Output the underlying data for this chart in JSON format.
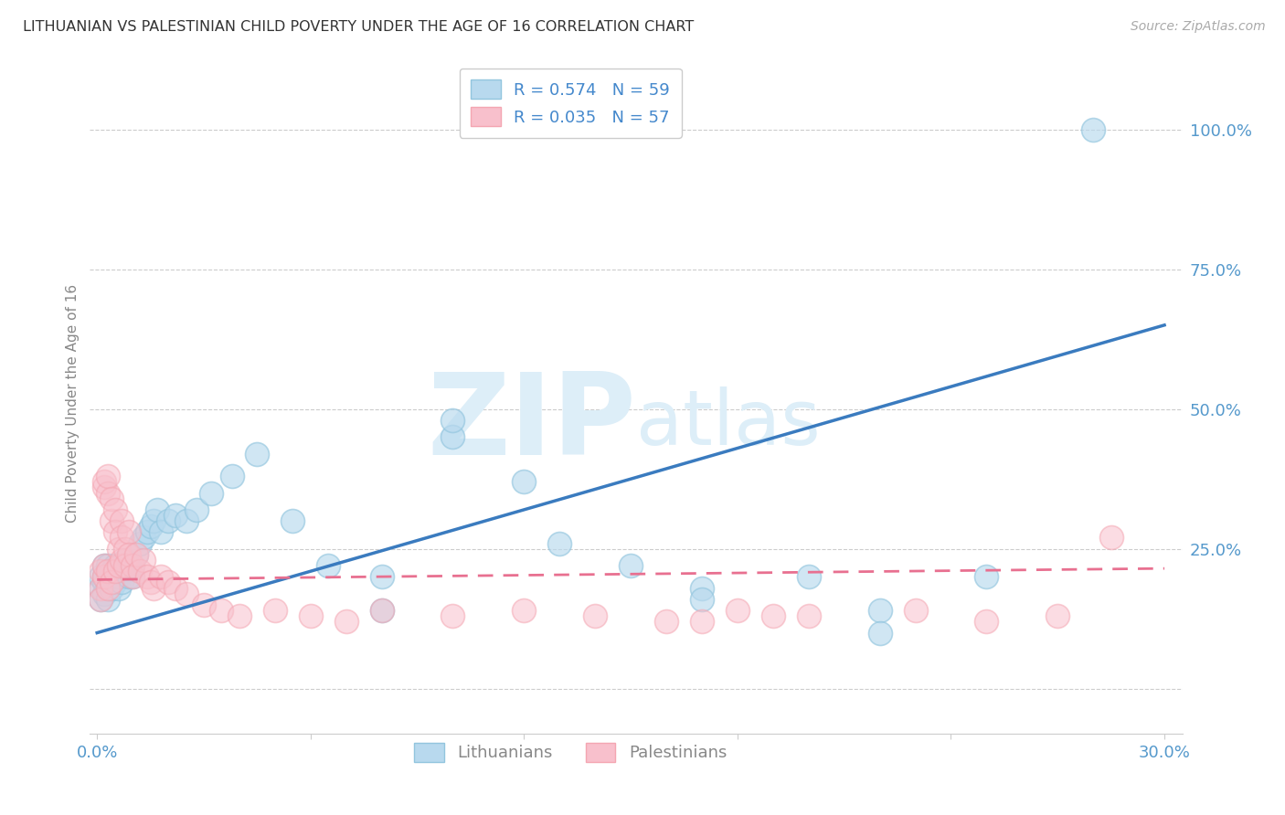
{
  "title": "LITHUANIAN VS PALESTINIAN CHILD POVERTY UNDER THE AGE OF 16 CORRELATION CHART",
  "source": "Source: ZipAtlas.com",
  "ylabel": "Child Poverty Under the Age of 16",
  "xlim": [
    -0.002,
    0.305
  ],
  "ylim": [
    -0.08,
    1.1
  ],
  "yticks": [
    0.0,
    0.25,
    0.5,
    0.75,
    1.0
  ],
  "ytick_labels": [
    "",
    "25.0%",
    "50.0%",
    "75.0%",
    "100.0%"
  ],
  "xticks": [
    0.0,
    0.06,
    0.12,
    0.18,
    0.24,
    0.3
  ],
  "xtick_labels": [
    "0.0%",
    "",
    "",
    "",
    "",
    "30.0%"
  ],
  "legend_r_labels": [
    "R = 0.574   N = 59",
    "R = 0.035   N = 57"
  ],
  "legend_labels": [
    "Lithuanians",
    "Palestinians"
  ],
  "blue_color": "#92c5de",
  "pink_color": "#f4a6b2",
  "blue_face": "#b8d9ee",
  "pink_face": "#f8c0cc",
  "blue_line_color": "#3a7bbf",
  "pink_line_color": "#e87090",
  "grid_color": "#cccccc",
  "watermark_color": "#ddeef8",
  "lit_line_x0": 0.0,
  "lit_line_x1": 0.3,
  "lit_line_y0": 0.1,
  "lit_line_y1": 0.65,
  "pal_line_x0": 0.0,
  "pal_line_x1": 0.3,
  "pal_line_y0": 0.195,
  "pal_line_y1": 0.215,
  "lit_x": [
    0.001,
    0.001,
    0.001,
    0.002,
    0.002,
    0.002,
    0.002,
    0.003,
    0.003,
    0.003,
    0.003,
    0.004,
    0.004,
    0.004,
    0.005,
    0.005,
    0.005,
    0.006,
    0.006,
    0.006,
    0.007,
    0.007,
    0.008,
    0.008,
    0.009,
    0.009,
    0.01,
    0.01,
    0.011,
    0.012,
    0.013,
    0.014,
    0.015,
    0.016,
    0.017,
    0.018,
    0.02,
    0.022,
    0.025,
    0.028,
    0.032,
    0.038,
    0.045,
    0.055,
    0.065,
    0.08,
    0.1,
    0.12,
    0.15,
    0.17,
    0.2,
    0.22,
    0.25,
    0.08,
    0.1,
    0.13,
    0.17,
    0.22,
    0.28
  ],
  "lit_y": [
    0.18,
    0.2,
    0.16,
    0.19,
    0.17,
    0.2,
    0.22,
    0.18,
    0.2,
    0.22,
    0.16,
    0.19,
    0.21,
    0.18,
    0.2,
    0.22,
    0.19,
    0.21,
    0.18,
    0.2,
    0.22,
    0.19,
    0.21,
    0.23,
    0.2,
    0.22,
    0.2,
    0.22,
    0.24,
    0.26,
    0.27,
    0.28,
    0.29,
    0.3,
    0.32,
    0.28,
    0.3,
    0.31,
    0.3,
    0.32,
    0.35,
    0.38,
    0.42,
    0.3,
    0.22,
    0.2,
    0.45,
    0.37,
    0.22,
    0.18,
    0.2,
    0.14,
    0.2,
    0.14,
    0.48,
    0.26,
    0.16,
    0.1,
    1.0
  ],
  "pal_x": [
    0.001,
    0.001,
    0.001,
    0.002,
    0.002,
    0.002,
    0.002,
    0.003,
    0.003,
    0.003,
    0.003,
    0.004,
    0.004,
    0.004,
    0.005,
    0.005,
    0.005,
    0.006,
    0.006,
    0.007,
    0.007,
    0.007,
    0.008,
    0.008,
    0.009,
    0.009,
    0.01,
    0.01,
    0.011,
    0.012,
    0.013,
    0.014,
    0.015,
    0.016,
    0.018,
    0.02,
    0.022,
    0.025,
    0.03,
    0.035,
    0.04,
    0.05,
    0.06,
    0.07,
    0.08,
    0.1,
    0.12,
    0.14,
    0.16,
    0.18,
    0.2,
    0.23,
    0.25,
    0.27,
    0.285,
    0.17,
    0.19
  ],
  "pal_y": [
    0.18,
    0.21,
    0.16,
    0.36,
    0.37,
    0.2,
    0.22,
    0.35,
    0.38,
    0.18,
    0.21,
    0.3,
    0.34,
    0.19,
    0.32,
    0.28,
    0.21,
    0.25,
    0.22,
    0.3,
    0.27,
    0.23,
    0.25,
    0.22,
    0.28,
    0.24,
    0.22,
    0.2,
    0.24,
    0.21,
    0.23,
    0.2,
    0.19,
    0.18,
    0.2,
    0.19,
    0.18,
    0.17,
    0.15,
    0.14,
    0.13,
    0.14,
    0.13,
    0.12,
    0.14,
    0.13,
    0.14,
    0.13,
    0.12,
    0.14,
    0.13,
    0.14,
    0.12,
    0.13,
    0.27,
    0.12,
    0.13
  ]
}
